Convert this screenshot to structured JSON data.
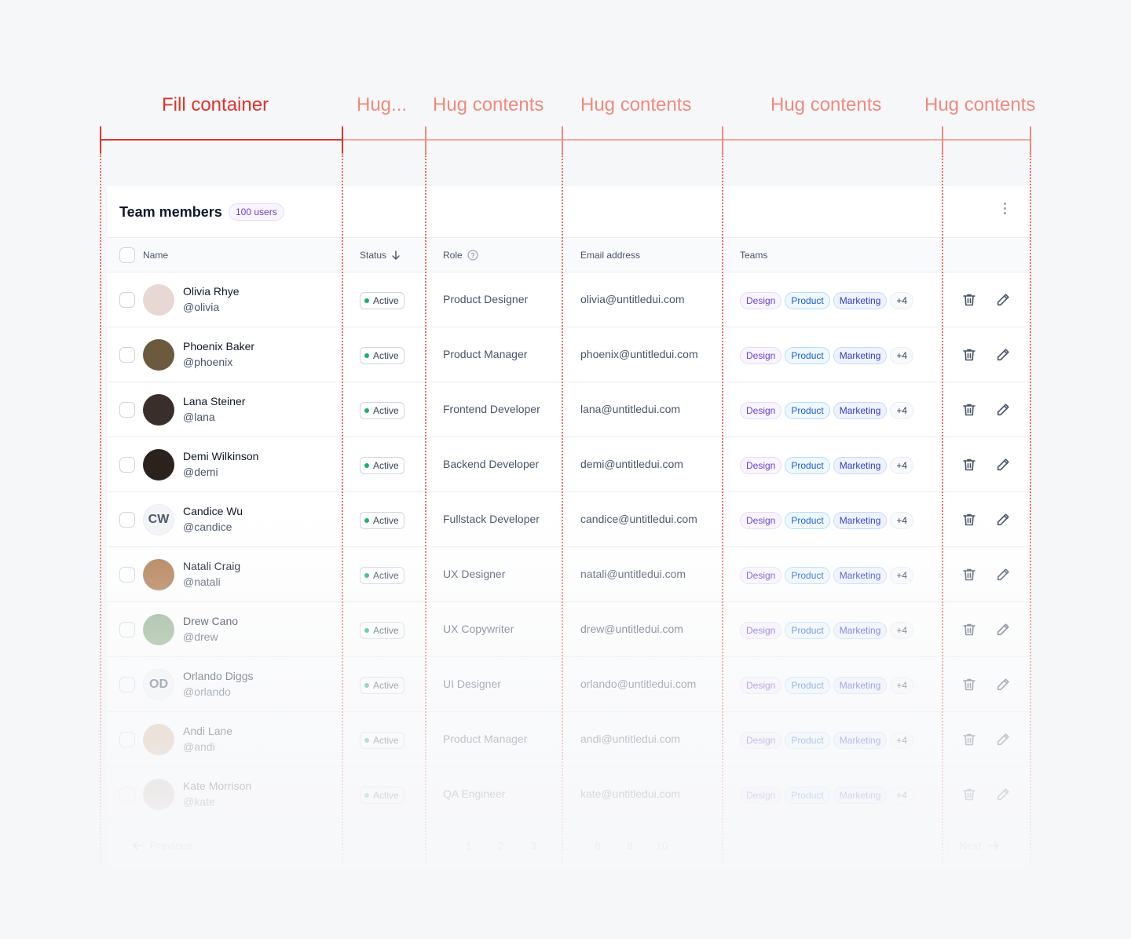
{
  "annotations": {
    "fill": "Fill container",
    "hug_short": "Hug...",
    "hug": "Hug contents"
  },
  "card": {
    "title": "Team members",
    "badge": "100 users",
    "menu_icon": "dots-vertical-icon"
  },
  "columns": {
    "name": "Name",
    "status": "Status",
    "role": "Role",
    "email": "Email address",
    "teams": "Teams"
  },
  "tags": {
    "design": "Design",
    "product": "Product",
    "marketing": "Marketing",
    "more": "+4"
  },
  "rows": [
    {
      "name": "Olivia Rhye",
      "handle": "@olivia",
      "status": "Active",
      "role": "Product Designer",
      "email": "olivia@untitledui.com",
      "avatar_color": "#e8d8d4"
    },
    {
      "name": "Phoenix Baker",
      "handle": "@phoenix",
      "status": "Active",
      "role": "Product Manager",
      "email": "phoenix@untitledui.com",
      "avatar_color": "#6b5a3e"
    },
    {
      "name": "Lana Steiner",
      "handle": "@lana",
      "status": "Active",
      "role": "Frontend Developer",
      "email": "lana@untitledui.com",
      "avatar_color": "#3a2e2a"
    },
    {
      "name": "Demi Wilkinson",
      "handle": "@demi",
      "status": "Active",
      "role": "Backend Developer",
      "email": "demi@untitledui.com",
      "avatar_color": "#2b211d"
    },
    {
      "name": "Candice Wu",
      "handle": "@candice",
      "status": "Active",
      "role": "Fullstack Developer",
      "email": "candice@untitledui.com",
      "initials": "CW"
    },
    {
      "name": "Natali Craig",
      "handle": "@natali",
      "status": "Active",
      "role": "UX Designer",
      "email": "natali@untitledui.com",
      "avatar_color": "#b07a4e"
    },
    {
      "name": "Drew Cano",
      "handle": "@drew",
      "status": "Active",
      "role": "UX Copywriter",
      "email": "drew@untitledui.com",
      "avatar_color": "#8fae8a"
    },
    {
      "name": "Orlando Diggs",
      "handle": "@orlando",
      "status": "Active",
      "role": "UI Designer",
      "email": "orlando@untitledui.com",
      "initials": "OD"
    },
    {
      "name": "Andi Lane",
      "handle": "@andi",
      "status": "Active",
      "role": "Product Manager",
      "email": "andi@untitledui.com",
      "avatar_color": "#d8b89a"
    },
    {
      "name": "Kate Morrison",
      "handle": "@kate",
      "status": "Active",
      "role": "QA Engineer",
      "email": "kate@untitledui.com",
      "avatar_color": "#c9b7ae"
    }
  ],
  "pagination": {
    "previous": "Previous",
    "next": "Next",
    "pages": [
      "1",
      "2",
      "3",
      "...",
      "8",
      "9",
      "10"
    ]
  }
}
